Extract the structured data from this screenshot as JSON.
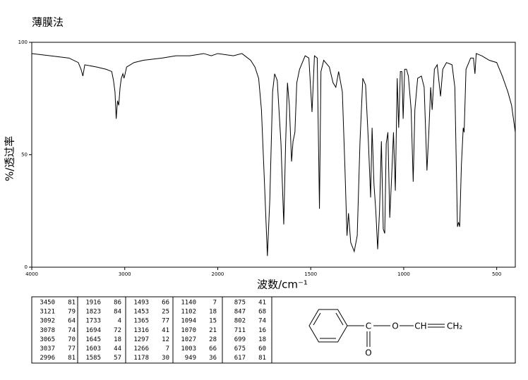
{
  "chart_data": {
    "type": "line",
    "title": "薄膜法",
    "xlabel": "波数/cm⁻¹",
    "ylabel": "%/透过率",
    "color": "#000000",
    "xlim": [
      4000,
      400
    ],
    "xticks": [
      4000,
      3000,
      2000,
      1500,
      1000,
      500
    ],
    "ylim": [
      0,
      100
    ],
    "yticks": [
      0,
      50,
      100
    ],
    "x": [
      4000,
      3800,
      3600,
      3500,
      3470,
      3450,
      3430,
      3300,
      3200,
      3140,
      3121,
      3105,
      3092,
      3078,
      3065,
      3050,
      3037,
      3020,
      3008,
      2996,
      2980,
      2900,
      2800,
      2600,
      2450,
      2300,
      2150,
      2070,
      2000,
      1916,
      1870,
      1823,
      1800,
      1780,
      1765,
      1750,
      1733,
      1720,
      1705,
      1694,
      1680,
      1660,
      1645,
      1635,
      1625,
      1615,
      1603,
      1595,
      1585,
      1575,
      1560,
      1530,
      1510,
      1493,
      1480,
      1465,
      1453,
      1445,
      1430,
      1400,
      1380,
      1365,
      1350,
      1330,
      1316,
      1305,
      1297,
      1285,
      1266,
      1250,
      1235,
      1220,
      1205,
      1190,
      1178,
      1170,
      1160,
      1150,
      1140,
      1130,
      1120,
      1110,
      1102,
      1094,
      1085,
      1075,
      1065,
      1055,
      1045,
      1035,
      1027,
      1018,
      1010,
      1003,
      995,
      985,
      975,
      960,
      949,
      940,
      925,
      905,
      890,
      875,
      865,
      855,
      847,
      835,
      820,
      802,
      790,
      770,
      740,
      725,
      711,
      705,
      699,
      690,
      680,
      675,
      665,
      640,
      625,
      617,
      610,
      580,
      540,
      500,
      470,
      440,
      420,
      400
    ],
    "values": [
      95,
      94,
      93,
      91,
      88,
      85,
      90,
      89,
      88,
      87,
      83,
      78,
      66,
      74,
      72,
      80,
      84,
      86,
      84,
      86,
      89,
      91,
      92,
      93,
      94,
      94,
      95,
      94,
      95,
      94,
      95,
      92,
      89,
      84,
      70,
      40,
      5,
      30,
      78,
      86,
      83,
      55,
      19,
      55,
      82,
      72,
      47,
      56,
      60,
      82,
      88,
      94,
      93,
      69,
      94,
      93,
      26,
      87,
      92,
      89,
      82,
      80,
      87,
      78,
      44,
      14,
      24,
      11,
      7,
      14,
      56,
      84,
      81,
      56,
      31,
      62,
      37,
      25,
      8,
      25,
      56,
      17,
      15,
      55,
      60,
      22,
      40,
      60,
      34,
      84,
      62,
      87,
      87,
      66,
      88,
      88,
      85,
      70,
      38,
      70,
      84,
      85,
      80,
      43,
      60,
      80,
      70,
      88,
      90,
      76,
      88,
      91,
      90,
      80,
      18,
      20,
      18,
      45,
      62,
      60,
      88,
      93,
      93,
      86,
      95,
      94,
      92,
      91,
      85,
      78,
      72,
      60
    ]
  },
  "peak_table": [
    [
      [
        3450,
        81
      ],
      [
        3121,
        79
      ],
      [
        3092,
        64
      ],
      [
        3078,
        74
      ],
      [
        3065,
        70
      ],
      [
        3037,
        77
      ],
      [
        2996,
        81
      ]
    ],
    [
      [
        1916,
        86
      ],
      [
        1823,
        84
      ],
      [
        1733,
        4
      ],
      [
        1694,
        72
      ],
      [
        1645,
        18
      ],
      [
        1603,
        44
      ],
      [
        1585,
        57
      ]
    ],
    [
      [
        1493,
        66
      ],
      [
        1453,
        25
      ],
      [
        1365,
        77
      ],
      [
        1316,
        41
      ],
      [
        1297,
        12
      ],
      [
        1266,
        7
      ],
      [
        1178,
        30
      ]
    ],
    [
      [
        1140,
        7
      ],
      [
        1102,
        18
      ],
      [
        1094,
        15
      ],
      [
        1070,
        21
      ],
      [
        1027,
        28
      ],
      [
        1003,
        66
      ],
      [
        949,
        36
      ]
    ],
    [
      [
        875,
        41
      ],
      [
        847,
        68
      ],
      [
        802,
        74
      ],
      [
        711,
        16
      ],
      [
        699,
        18
      ],
      [
        675,
        60
      ],
      [
        617,
        81
      ]
    ]
  ],
  "structure": {
    "carbonyl_c": "C",
    "ester_o": "O",
    "vinyl_ch": "CH",
    "vinyl_ch2": "CH₂",
    "carbonyl_o": "O"
  }
}
